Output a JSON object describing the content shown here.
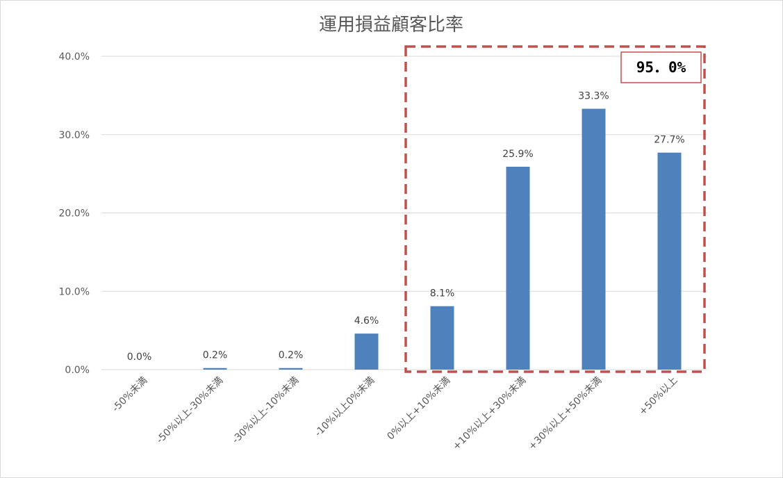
{
  "chart_data": {
    "type": "bar",
    "title": "運用損益顧客比率",
    "categories": [
      "-50%未満",
      "-50%以上-30%未満",
      "-30%以上-10%未満",
      "-10%以上0%未満",
      "0%以上+10%未満",
      "+10%以上+30%未満",
      "+30%以上+50%未満",
      "+50%以上"
    ],
    "values": [
      0.0,
      0.2,
      0.2,
      4.6,
      8.1,
      25.9,
      33.3,
      27.7
    ],
    "data_labels": [
      "0.0%",
      "0.2%",
      "0.2%",
      "4.6%",
      "8.1%",
      "25.9%",
      "33.3%",
      "27.7%"
    ],
    "yticks": [
      "0.0%",
      "10.0%",
      "20.0%",
      "30.0%",
      "40.0%"
    ],
    "ylim": [
      0,
      40
    ],
    "grid": true,
    "bar_color": "#4f81bd",
    "highlight": {
      "label": "95．0%",
      "categories_from": 4,
      "categories_to": 7,
      "border_color": "#c0504d"
    }
  }
}
